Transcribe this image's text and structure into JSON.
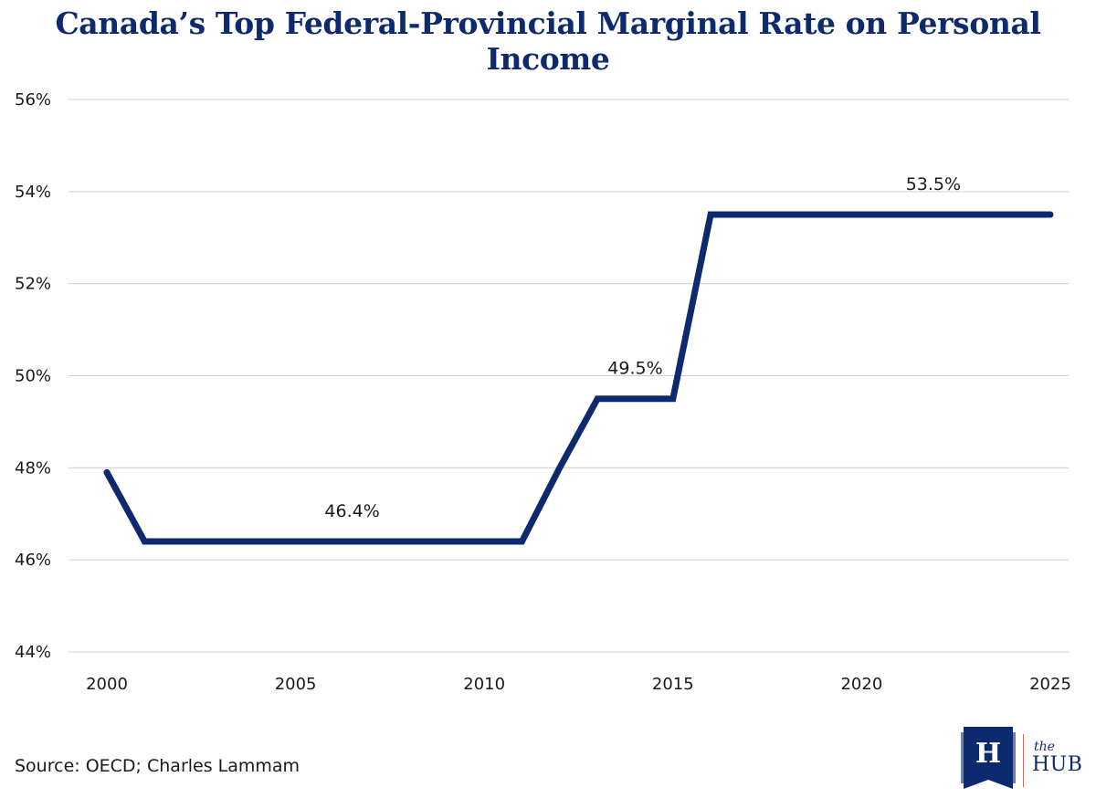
{
  "header": {
    "title": "Canada’s Top Federal-Provincial Marginal Rate on Personal Income"
  },
  "footer": {
    "source": "Source: OECD; Charles Lammam"
  },
  "logo": {
    "letter": "H",
    "the": "the",
    "hub": "HUB"
  },
  "colors": {
    "line": "#0e2a6e",
    "grid": "#cfcfcf",
    "title": "#0e2a6e"
  },
  "chart_data": {
    "type": "line",
    "title": "Canada’s Top Federal-Provincial Marginal Rate on Personal Income",
    "xlabel": "",
    "ylabel": "",
    "grid": true,
    "xlim": [
      2000,
      2025
    ],
    "ylim": [
      44,
      56
    ],
    "xticks": [
      "2000",
      "2005",
      "2010",
      "2015",
      "2020",
      "2025"
    ],
    "yticks": [
      "44%",
      "46%",
      "48%",
      "50%",
      "52%",
      "54%",
      "56%"
    ],
    "series": [
      {
        "x": [
          2000,
          2001,
          2002,
          2003,
          2004,
          2005,
          2006,
          2007,
          2008,
          2009,
          2010,
          2011,
          2012,
          2013,
          2014,
          2015,
          2016,
          2017,
          2018,
          2019,
          2020,
          2021,
          2022,
          2023,
          2024,
          2025
        ],
        "values": [
          47.9,
          46.4,
          46.4,
          46.4,
          46.4,
          46.4,
          46.4,
          46.4,
          46.4,
          46.4,
          46.4,
          46.4,
          48.0,
          49.5,
          49.5,
          49.5,
          53.5,
          53.5,
          53.5,
          53.5,
          53.5,
          53.5,
          53.5,
          53.5,
          53.5,
          53.5
        ]
      }
    ],
    "annotations": [
      {
        "text": "46.4%",
        "x": 2006.5,
        "y": 46.4
      },
      {
        "text": "49.5%",
        "x": 2014,
        "y": 49.5
      },
      {
        "text": "53.5%",
        "x": 2021.9,
        "y": 53.5
      }
    ]
  }
}
